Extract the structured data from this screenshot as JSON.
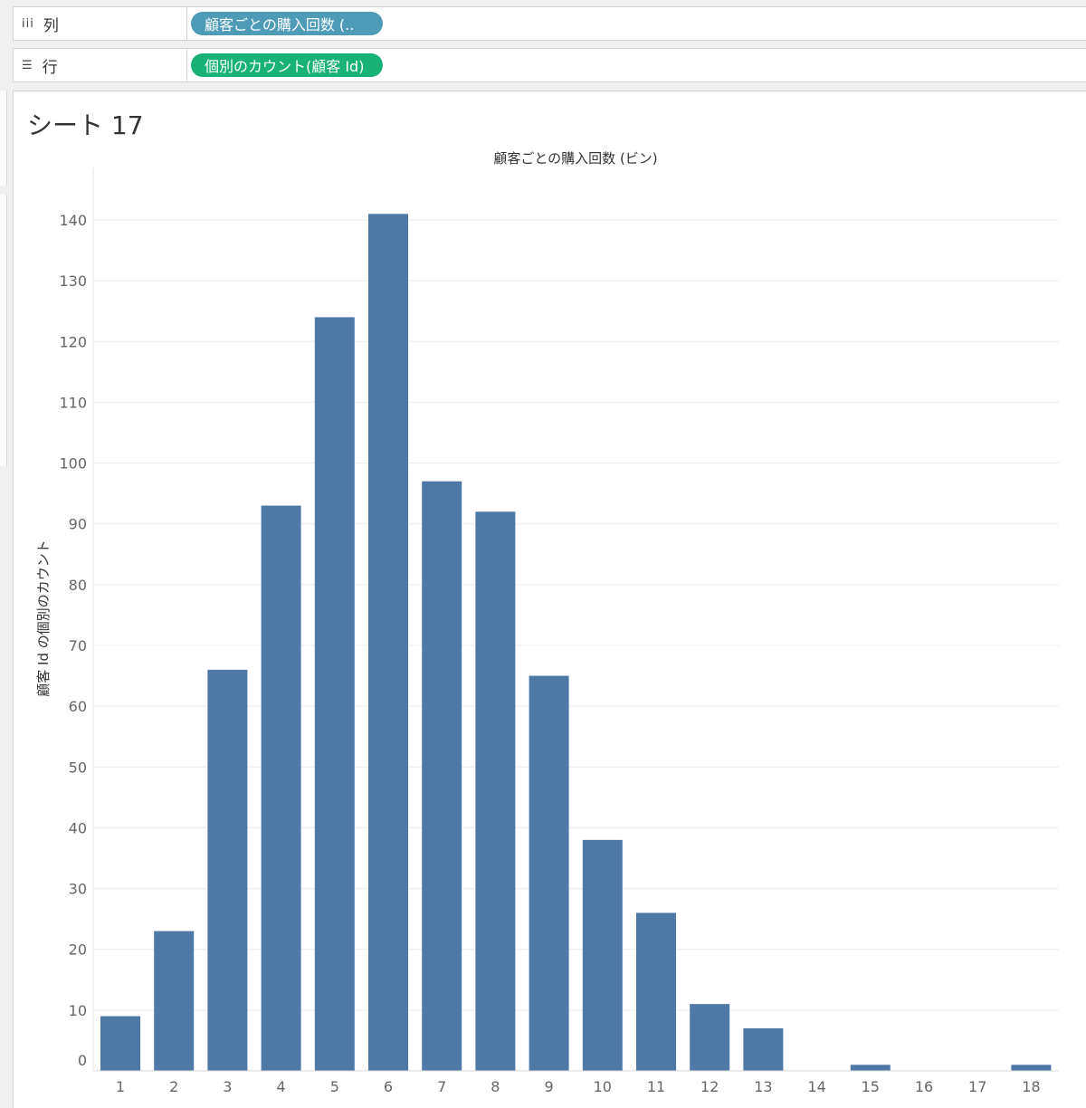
{
  "shelves": {
    "columns": {
      "icon": "iii",
      "label": "列",
      "pill": "顧客ごとの購入回数 (..",
      "pill_color": "#4e9bb8"
    },
    "rows": {
      "icon": "☰",
      "label": "行",
      "pill": "個別のカウント(顧客 Id)",
      "pill_color": "#18b277"
    }
  },
  "sheet": {
    "title": "シート 17"
  },
  "chart_data": {
    "type": "bar",
    "title": "顧客ごとの購入回数 (ビン)",
    "ylabel": "顧客 Id の個別のカウント",
    "categories": [
      "1",
      "2",
      "3",
      "4",
      "5",
      "6",
      "7",
      "8",
      "9",
      "10",
      "11",
      "12",
      "13",
      "14",
      "15",
      "16",
      "17",
      "18"
    ],
    "values": [
      9,
      23,
      66,
      93,
      124,
      141,
      97,
      92,
      65,
      38,
      26,
      11,
      7,
      0,
      1,
      0,
      0,
      1
    ],
    "ylim": [
      0,
      140
    ],
    "yticks": [
      0,
      10,
      20,
      30,
      40,
      50,
      60,
      70,
      80,
      90,
      100,
      110,
      120,
      130,
      140
    ],
    "bar_color": "#4e79a7",
    "grid": true
  }
}
